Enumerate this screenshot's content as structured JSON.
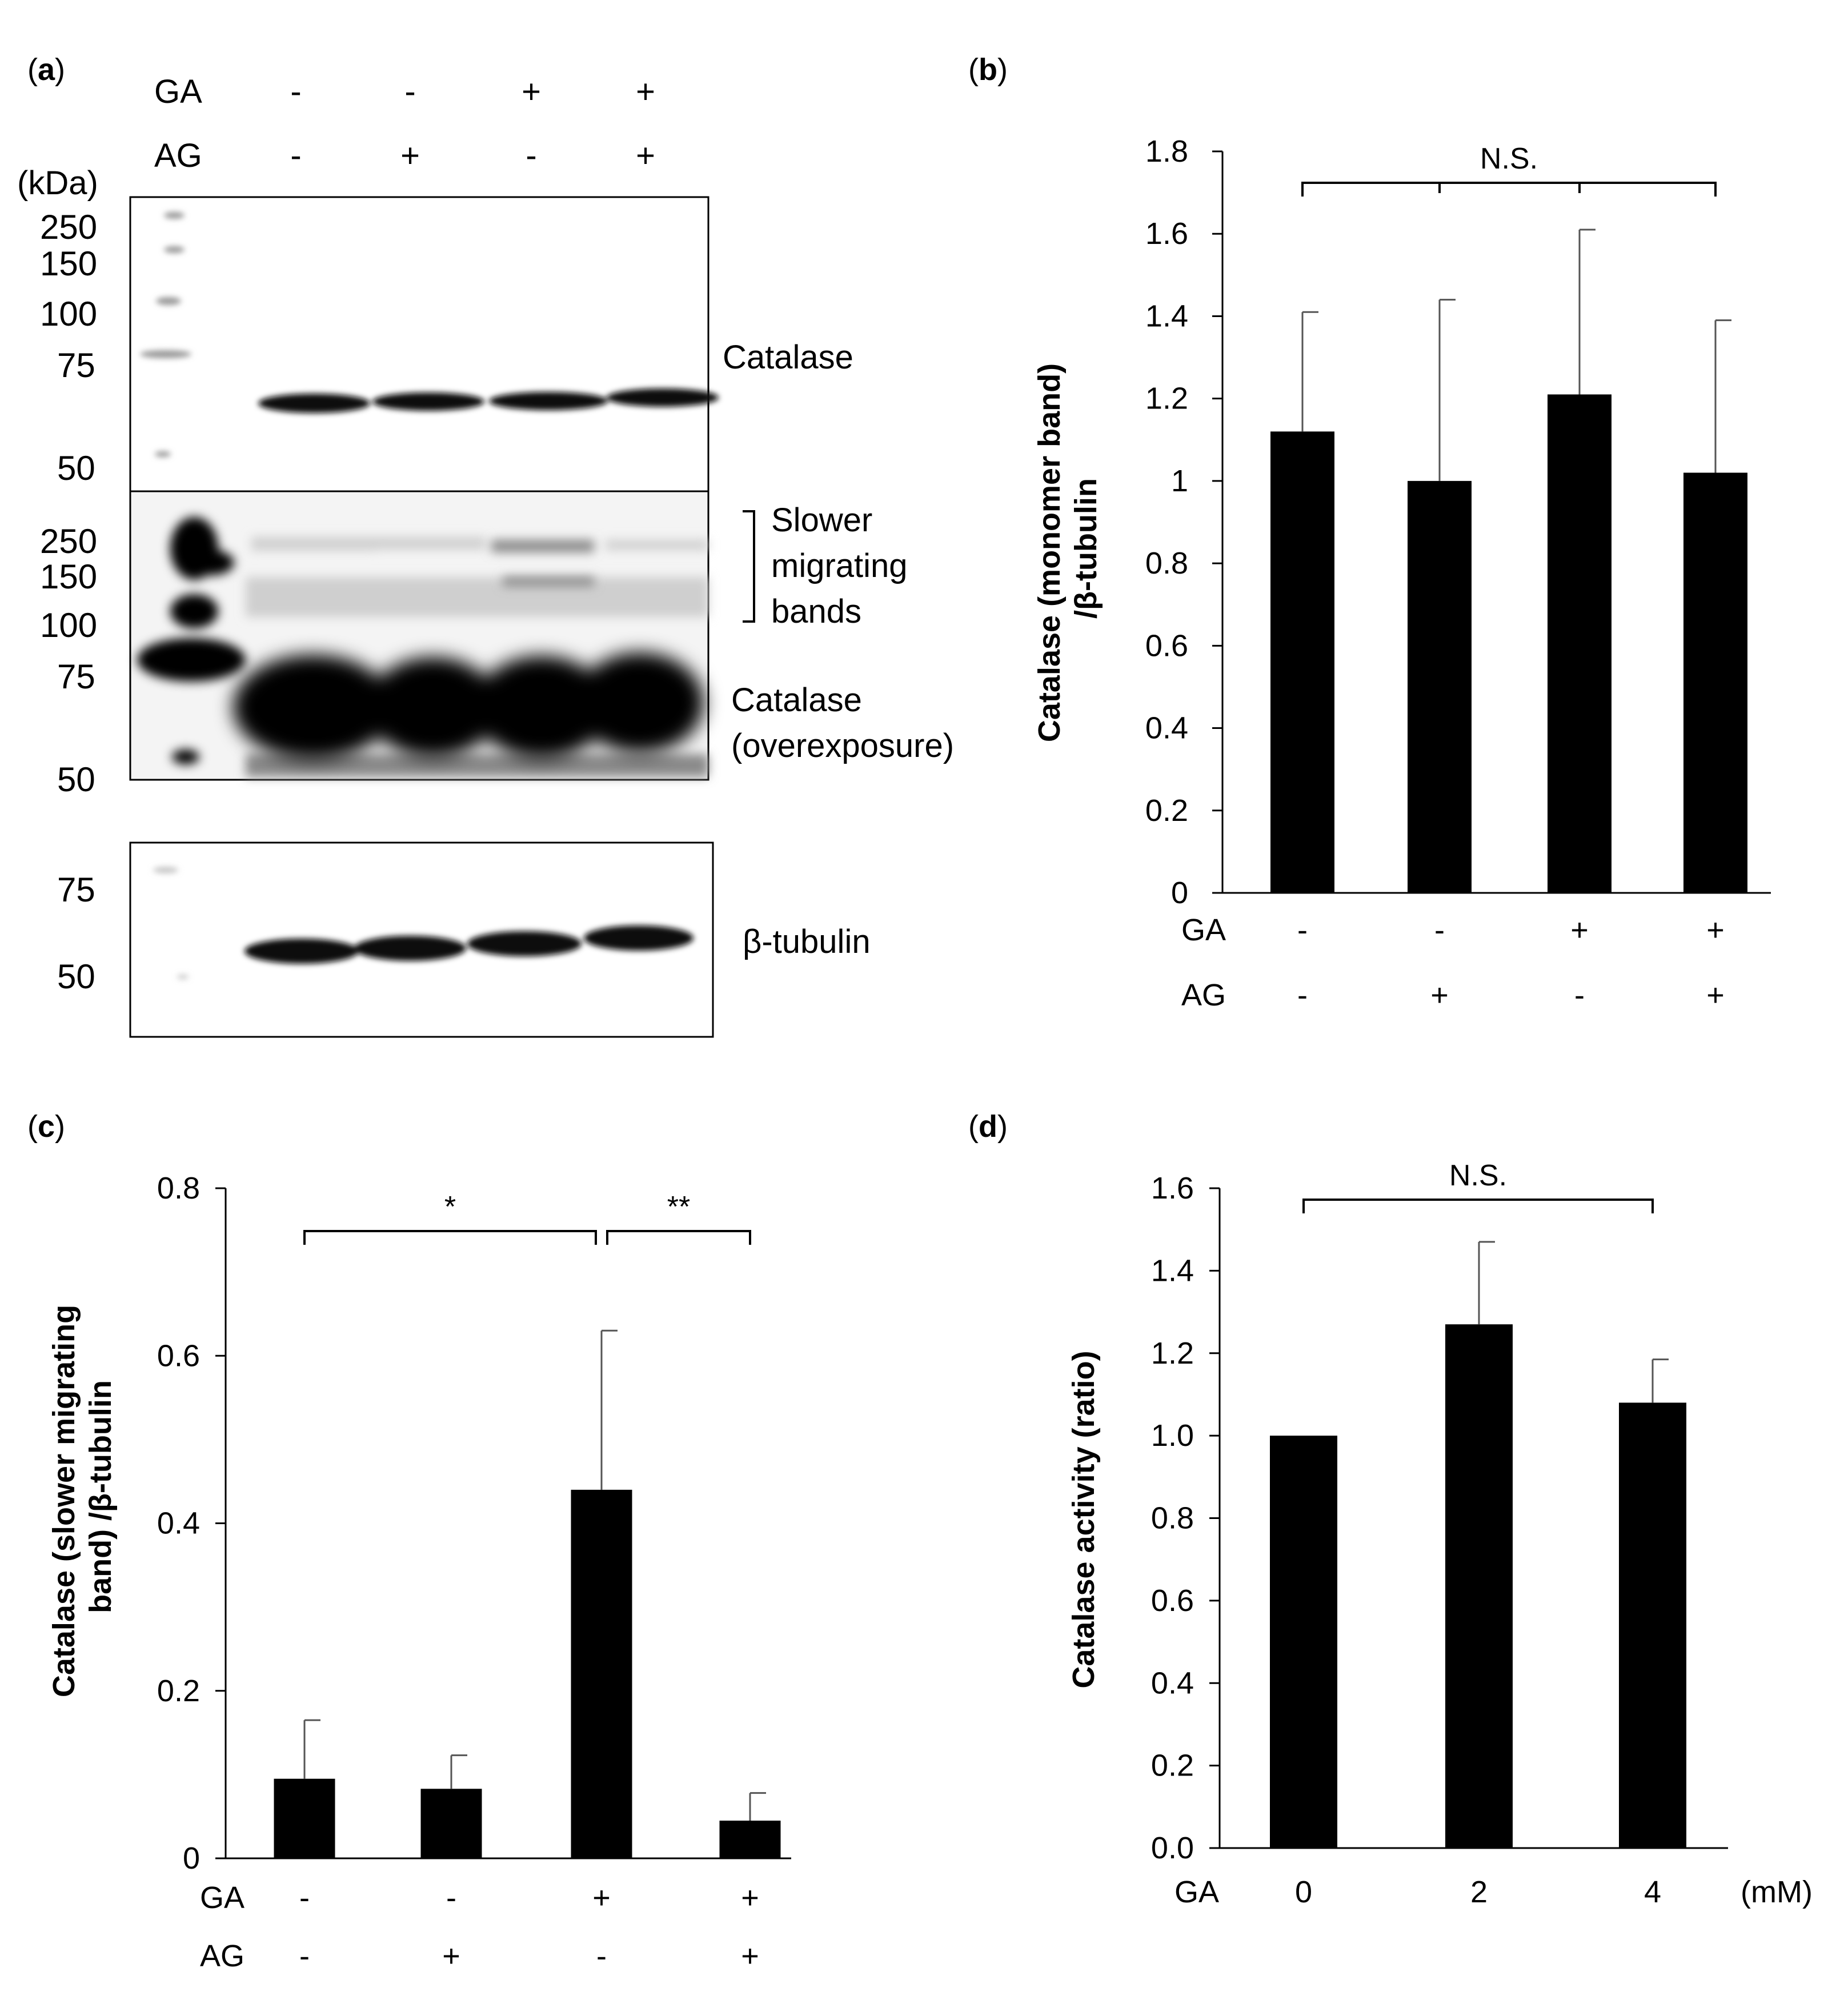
{
  "panels": {
    "a": {
      "label_open": "(",
      "label_letter": "a",
      "label_close": ")",
      "ga_label": "GA",
      "ag_label": "AG",
      "ga_signs": [
        "-",
        "-",
        "+",
        "+"
      ],
      "ag_signs": [
        "-",
        "+",
        "-",
        "+"
      ],
      "kda_label": "(kDa)",
      "mw_top": [
        "250",
        "150",
        "100",
        "75",
        "50"
      ],
      "mw_middle": [
        "250",
        "150",
        "100",
        "75",
        "50"
      ],
      "mw_bottom": [
        "75",
        "50"
      ],
      "band_label_catalase": "Catalase",
      "band_label_slower": [
        "Slower",
        "migrating",
        "bands"
      ],
      "band_label_overexposure": [
        "Catalase",
        "(overexposure)"
      ],
      "band_label_tubulin": "β-tubulin"
    }
  },
  "chart_data": [
    {
      "panel": "b",
      "type": "bar",
      "ylabel_lines": [
        "Catalase (monomer band)",
        "/β-tubulin"
      ],
      "ylim": [
        0,
        1.8
      ],
      "yticks": [
        "0",
        "0.2",
        "0.4",
        "0.6",
        "0.8",
        "1",
        "1.2",
        "1.4",
        "1.6",
        "1.8"
      ],
      "ga_label": "GA",
      "ag_label": "AG",
      "ga_signs": [
        "-",
        "-",
        "+",
        "+"
      ],
      "ag_signs": [
        "-",
        "+",
        "-",
        "+"
      ],
      "values": [
        1.12,
        1.0,
        1.21,
        1.02
      ],
      "errors": [
        0.29,
        0.44,
        0.4,
        0.37
      ],
      "significance": [
        {
          "from": 0,
          "to": 3,
          "label": "N.S."
        }
      ],
      "bar_color": "#000000"
    },
    {
      "panel": "c",
      "type": "bar",
      "ylabel_lines": [
        "Catalase (slower migrating",
        "band) /β-tubulin"
      ],
      "ylim": [
        0,
        0.8
      ],
      "yticks": [
        "0",
        "0.2",
        "0.4",
        "0.6",
        "0.8"
      ],
      "ga_label": "GA",
      "ag_label": "AG",
      "ga_signs": [
        "-",
        "-",
        "+",
        "+"
      ],
      "ag_signs": [
        "-",
        "+",
        "-",
        "+"
      ],
      "values": [
        0.095,
        0.083,
        0.44,
        0.045
      ],
      "errors": [
        0.07,
        0.04,
        0.19,
        0.033
      ],
      "significance": [
        {
          "from": 0,
          "to": 2,
          "label": "*"
        },
        {
          "from": 2,
          "to": 3,
          "label": "**"
        }
      ],
      "bar_color": "#000000"
    },
    {
      "panel": "d",
      "type": "bar",
      "ylabel_lines": [
        "Catalase activity (ratio)"
      ],
      "ylim": [
        0,
        1.6
      ],
      "yticks": [
        "0.0",
        "0.2",
        "0.4",
        "0.6",
        "0.8",
        "1.0",
        "1.2",
        "1.4",
        "1.6"
      ],
      "x_label": "GA",
      "categories": [
        "0",
        "2",
        "4"
      ],
      "unit": "(mM)",
      "values": [
        1.0,
        1.27,
        1.08
      ],
      "errors": [
        0,
        0.2,
        0.105
      ],
      "significance": [
        {
          "from": 0,
          "to": 2,
          "label": "N.S."
        }
      ],
      "bar_color": "#000000"
    }
  ]
}
